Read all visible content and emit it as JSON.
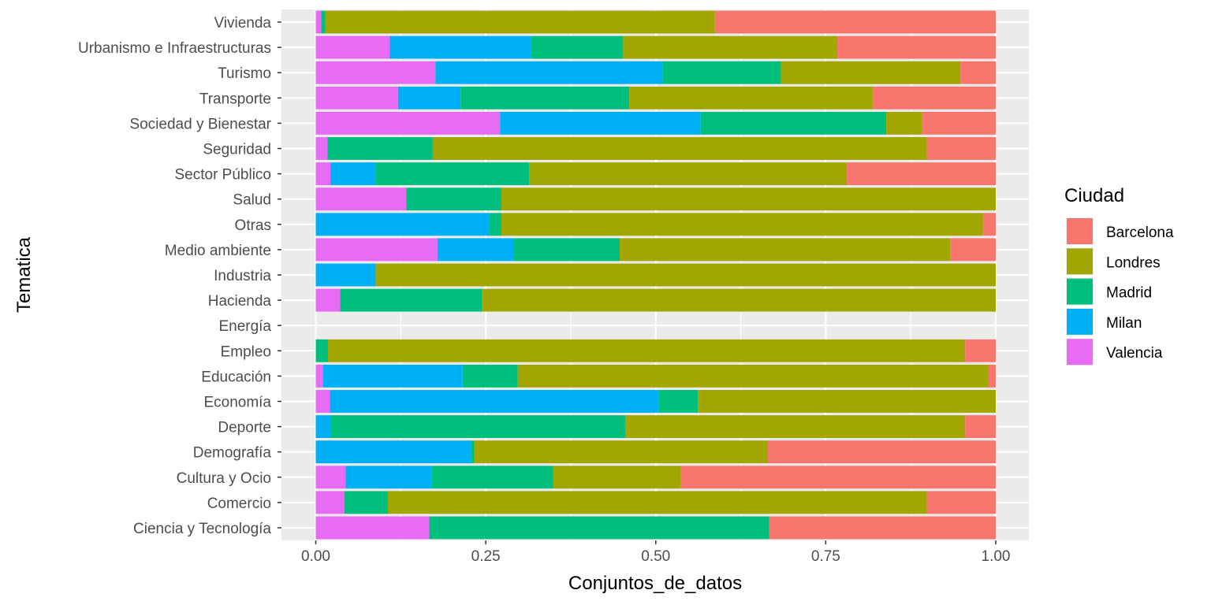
{
  "chart_data": {
    "type": "bar",
    "orientation": "horizontal",
    "stacked": "fill",
    "xlabel": "Conjuntos_de_datos",
    "ylabel": "Tematica",
    "xlim": [
      0,
      1
    ],
    "x_ticks": [
      "0.00",
      "0.25",
      "0.50",
      "0.75",
      "1.00"
    ],
    "x_tick_values": [
      0,
      0.25,
      0.5,
      0.75,
      1.0
    ],
    "grid": true,
    "background": "#ebebeb",
    "legend": {
      "title": "Ciudad",
      "position": "right"
    },
    "categories": [
      "Vivienda",
      "Urbanismo e Infraestructuras",
      "Turismo",
      "Transporte",
      "Sociedad y Bienestar",
      "Seguridad",
      "Sector Público",
      "Salud",
      "Otras",
      "Medio ambiente",
      "Industria",
      "Hacienda",
      "Energía",
      "Empleo",
      "Educación",
      "Economía",
      "Deporte",
      "Demografía",
      "Cultura y Ocio",
      "Comercio",
      "Ciencia y Tecnología"
    ],
    "stack_order_left_to_right": [
      "Valencia",
      "Milan",
      "Madrid",
      "Londres",
      "Barcelona"
    ],
    "series": [
      {
        "name": "Barcelona",
        "color": "#F8766D",
        "values": [
          0.413,
          0.233,
          0.052,
          0.181,
          0.108,
          0.101,
          0.219,
          0.0,
          0.019,
          0.067,
          0.0,
          0.0,
          0.0,
          0.045,
          0.011,
          0.0,
          0.045,
          0.335,
          0.463,
          0.101,
          0.333
        ]
      },
      {
        "name": "Londres",
        "color": "#A3A500",
        "values": [
          0.573,
          0.315,
          0.264,
          0.358,
          0.053,
          0.727,
          0.467,
          0.727,
          0.708,
          0.486,
          0.912,
          0.755,
          0.0,
          0.937,
          0.692,
          0.438,
          0.5,
          0.432,
          0.188,
          0.793,
          0.0
        ]
      },
      {
        "name": "Madrid",
        "color": "#00BF7D",
        "values": [
          0.006,
          0.135,
          0.174,
          0.248,
          0.273,
          0.155,
          0.226,
          0.14,
          0.018,
          0.156,
          0.0,
          0.209,
          0.0,
          0.018,
          0.081,
          0.058,
          0.433,
          0.004,
          0.179,
          0.064,
          0.5
        ]
      },
      {
        "name": "Milan",
        "color": "#00B0F6",
        "values": [
          0.0,
          0.208,
          0.334,
          0.092,
          0.295,
          0.0,
          0.066,
          0.0,
          0.255,
          0.112,
          0.088,
          0.0,
          0.0,
          0.0,
          0.205,
          0.483,
          0.022,
          0.229,
          0.126,
          0.0,
          0.0
        ]
      },
      {
        "name": "Valencia",
        "color": "#E76BF3",
        "values": [
          0.008,
          0.109,
          0.176,
          0.121,
          0.271,
          0.017,
          0.022,
          0.133,
          0.0,
          0.179,
          0.0,
          0.036,
          0.0,
          0.0,
          0.011,
          0.021,
          0.0,
          0.0,
          0.044,
          0.042,
          0.167
        ]
      }
    ],
    "legend_order": [
      "Barcelona",
      "Londres",
      "Madrid",
      "Milan",
      "Valencia"
    ]
  }
}
